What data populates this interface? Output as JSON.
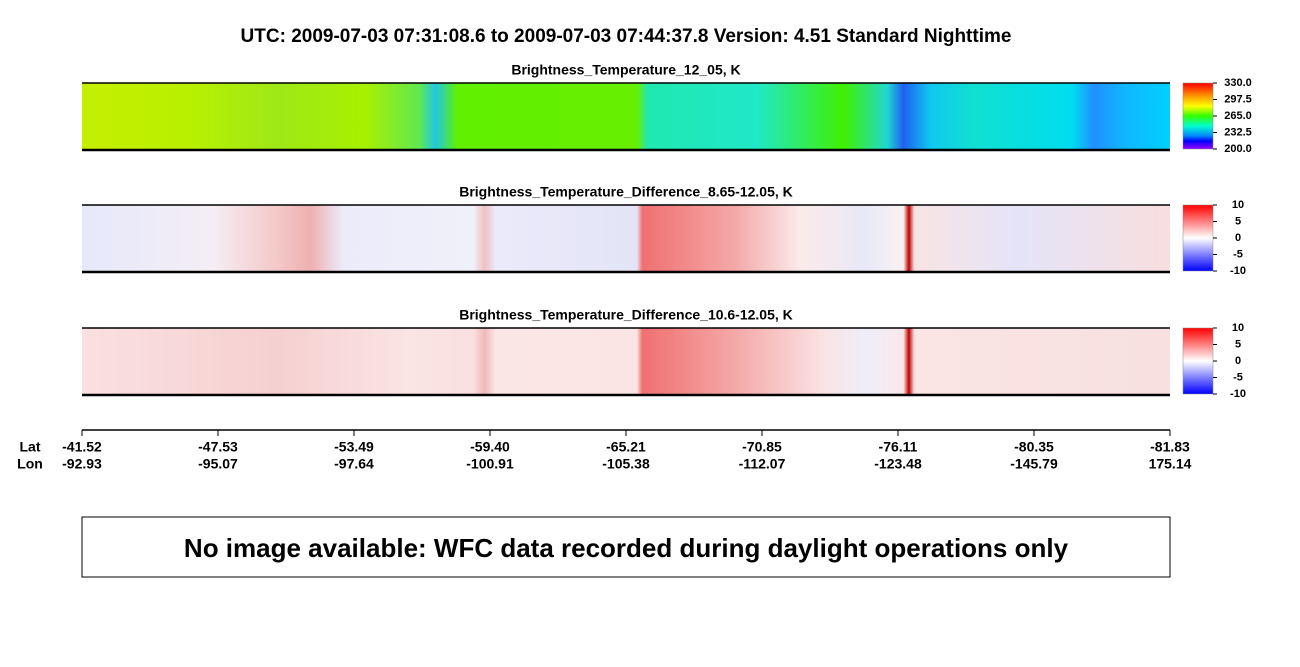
{
  "title": "UTC:  2009-07-03   07:31:08.6  to  2009-07-03   07:44:37.8    Version: 4.51  Standard Nighttime",
  "panels": [
    {
      "title": "Brightness_Temperature_12_05, K",
      "colorbar": "spectral",
      "clim": [
        200,
        330
      ],
      "ticks": [
        {
          "value": 330,
          "label": "330.0"
        },
        {
          "value": 297.5,
          "label": "297.5"
        },
        {
          "value": 265,
          "label": "265.0"
        },
        {
          "value": 232.5,
          "label": "232.5"
        },
        {
          "value": 200,
          "label": "200.0"
        }
      ]
    },
    {
      "title": "Brightness_Temperature_Difference_8.65-12.05, K",
      "colorbar": "diverging",
      "clim": [
        -10,
        10
      ],
      "ticks": [
        10,
        5,
        0,
        -5,
        -10
      ]
    },
    {
      "title": "Brightness_Temperature_Difference_10.6-12.05, K",
      "colorbar": "diverging",
      "clim": [
        -10,
        10
      ],
      "ticks": [
        10,
        5,
        0,
        -5,
        -10
      ]
    }
  ],
  "axis": {
    "lat_label": "Lat",
    "lon_label": "Lon",
    "lat": [
      "-41.52",
      "-47.53",
      "-53.49",
      "-59.40",
      "-65.21",
      "-70.85",
      "-76.11",
      "-80.35",
      "-81.83"
    ],
    "lon": [
      "-92.93",
      "-95.07",
      "-97.64",
      "-100.91",
      "-105.38",
      "-112.07",
      "-123.48",
      "-145.79",
      "175.14"
    ]
  },
  "message": "No image available: WFC data recorded during daylight operations only"
}
